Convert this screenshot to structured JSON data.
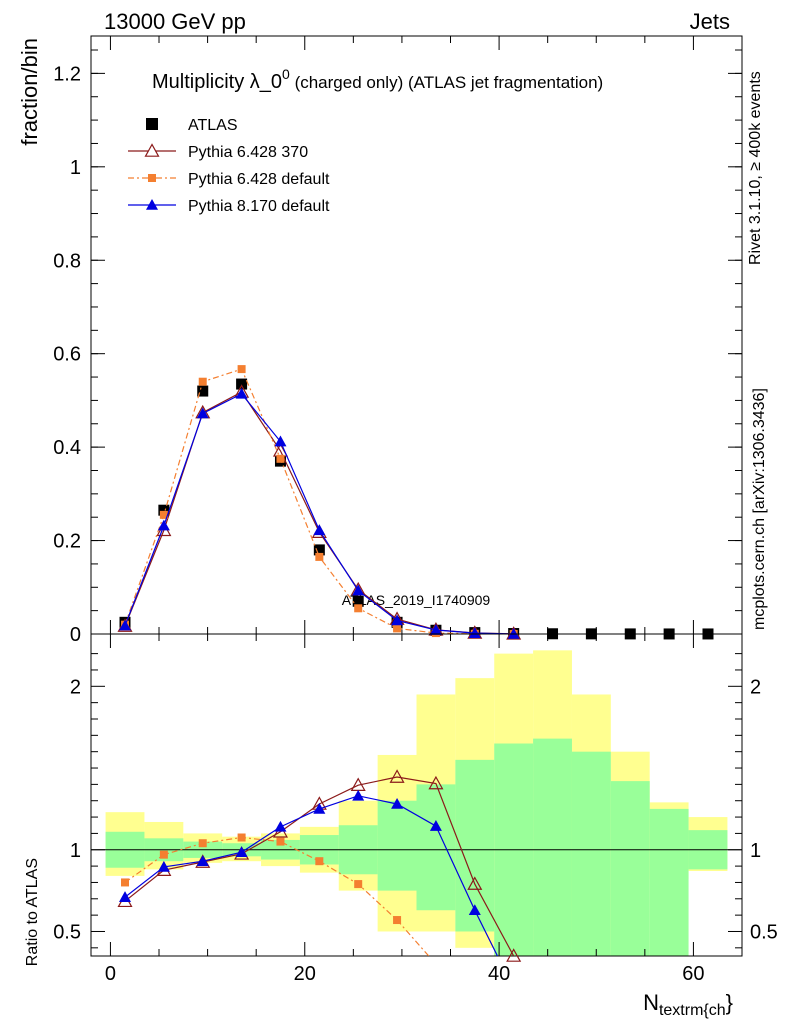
{
  "header": {
    "left": "13000 GeV pp",
    "right": "Jets"
  },
  "side": {
    "upper": "Rivet 3.1.10, ≥ 400k events",
    "lower": "mcplots.cern.ch [arXiv:1306.3436]"
  },
  "chart_data": [
    {
      "type": "scatter",
      "panel": "main",
      "title_main": "Multiplicity λ_0",
      "title_sup": "0",
      "title_rest": " (charged only) (ATLAS jet fragmentation)",
      "ylabel": "fraction/bin",
      "watermark": "ATLAS_2019_I1740909",
      "xlim": [
        -2,
        65
      ],
      "ylim": [
        0,
        1.28
      ],
      "yticks": [
        0,
        0.2,
        0.4,
        0.6,
        0.8,
        1,
        1.2
      ],
      "ytick_labels": [
        "0",
        "0.2",
        "0.4",
        "0.6",
        "0.8",
        "1",
        "1.2"
      ],
      "x": [
        1.5,
        5.5,
        9.5,
        13.5,
        17.5,
        21.5,
        25.5,
        29.5,
        33.5,
        37.5,
        41.5,
        45.5,
        49.5,
        53.5,
        57.5,
        61.5
      ],
      "series": [
        {
          "name": "ATLAS",
          "color": "#000000",
          "marker": "square",
          "values": [
            0.025,
            0.265,
            0.52,
            0.535,
            0.37,
            0.18,
            0.07,
            0.025,
            0.008,
            0.003,
            0.001,
            0.0005,
            0.0003,
            0.0002,
            0.0001,
            0.0001
          ]
        },
        {
          "name": "Pythia 6.428 370",
          "color": "#8b1a1a",
          "marker": "open-triangle",
          "line": "solid",
          "values": [
            0.017,
            0.222,
            0.474,
            0.518,
            0.392,
            0.218,
            0.095,
            0.032,
            0.009,
            0.0022,
            0.0003
          ]
        },
        {
          "name": "Pythia 6.428 default",
          "color": "#f47f30",
          "marker": "square-small",
          "line": "dashdot",
          "values": [
            0.02,
            0.255,
            0.54,
            0.567,
            0.375,
            0.165,
            0.055,
            0.012,
            0.002,
            0.0004,
            0.0001
          ]
        },
        {
          "name": "Pythia 8.170 default",
          "color": "#0000e0",
          "marker": "triangle",
          "line": "solid",
          "values": [
            0.018,
            0.232,
            0.472,
            0.514,
            0.412,
            0.222,
            0.093,
            0.029,
            0.0085,
            0.0018,
            0.0001
          ]
        }
      ]
    },
    {
      "type": "line",
      "panel": "ratio",
      "ylabel": "Ratio to ATLAS",
      "xlabel": "N",
      "xlabel_sub": "textrm{ch",
      "xlabel_tail": "}",
      "xlim": [
        -2,
        65
      ],
      "ylim": [
        0.35,
        2.32
      ],
      "yticks": [
        0.5,
        1,
        2
      ],
      "ytick_labels": [
        "0.5",
        "1",
        "2"
      ],
      "xticks": [
        0,
        20,
        40,
        60
      ],
      "xtick_labels": [
        "0",
        "20",
        "40",
        "60"
      ],
      "band_edges": [
        -0.5,
        3.5,
        7.5,
        11.5,
        15.5,
        19.5,
        23.5,
        27.5,
        31.5,
        35.5,
        39.5,
        43.5,
        47.5,
        51.5,
        55.5,
        59.5,
        63.5
      ],
      "band_inner": [
        [
          0.89,
          1.11
        ],
        [
          0.93,
          1.07
        ],
        [
          0.95,
          1.05
        ],
        [
          0.96,
          1.04
        ],
        [
          0.94,
          1.06
        ],
        [
          0.91,
          1.09
        ],
        [
          0.85,
          1.15
        ],
        [
          0.75,
          1.3
        ],
        [
          0.63,
          1.4
        ],
        [
          0.5,
          1.55
        ],
        [
          0.35,
          1.65
        ],
        [
          0.35,
          1.68
        ],
        [
          0.35,
          1.6
        ],
        [
          0.35,
          1.42
        ],
        [
          0.35,
          1.25
        ],
        [
          0.88,
          1.12
        ]
      ],
      "band_outer": [
        [
          0.84,
          1.23
        ],
        [
          0.88,
          1.17
        ],
        [
          0.92,
          1.1
        ],
        [
          0.93,
          1.08
        ],
        [
          0.9,
          1.1
        ],
        [
          0.86,
          1.14
        ],
        [
          0.75,
          1.3
        ],
        [
          0.5,
          1.58
        ],
        [
          0.5,
          1.95
        ],
        [
          0.4,
          2.05
        ],
        [
          0.35,
          2.2
        ],
        [
          0.35,
          2.22
        ],
        [
          0.35,
          1.95
        ],
        [
          0.35,
          1.6
        ],
        [
          0.82,
          1.29
        ],
        [
          0.87,
          1.2
        ]
      ],
      "series": [
        {
          "name": "Pythia 6.428 370",
          "color": "#8b1a1a",
          "values": [
            0.685,
            0.875,
            0.925,
            0.975,
            1.11,
            1.28,
            1.395,
            1.445,
            1.405,
            0.79,
            0.35,
            0.15
          ]
        },
        {
          "name": "Pythia 6.428 default",
          "color": "#f47f30",
          "values": [
            0.8,
            0.97,
            1.04,
            1.075,
            1.05,
            0.93,
            0.79,
            0.57,
            0.3
          ]
        },
        {
          "name": "Pythia 8.170 default",
          "color": "#0000e0",
          "values": [
            0.71,
            0.895,
            0.93,
            0.985,
            1.14,
            1.25,
            1.33,
            1.28,
            1.145,
            0.63,
            0.15
          ]
        }
      ]
    }
  ]
}
